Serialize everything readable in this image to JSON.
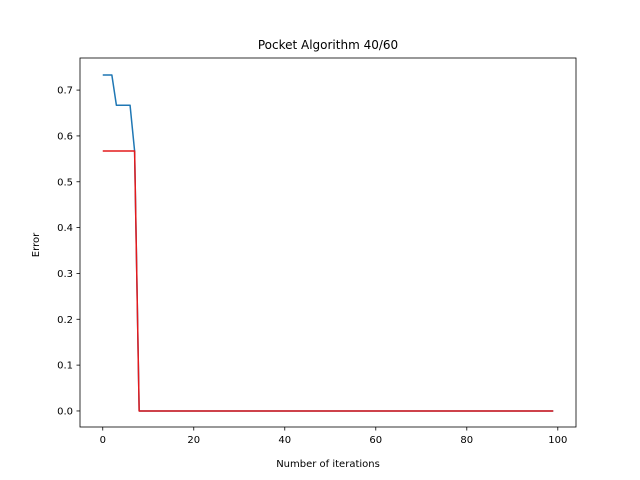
{
  "chart_data": {
    "type": "line",
    "title": "Pocket Algorithm 40/60",
    "xlabel": "Number of iterations",
    "ylabel": "Error",
    "xlim": [
      -5.0,
      104.0
    ],
    "ylim": [
      -0.035,
      0.77
    ],
    "xticks": [
      0,
      20,
      40,
      60,
      80,
      100
    ],
    "yticks": [
      0.0,
      0.1,
      0.2,
      0.3,
      0.4,
      0.5,
      0.6,
      0.7
    ],
    "xtick_labels": [
      "0",
      "20",
      "40",
      "60",
      "80",
      "100"
    ],
    "ytick_labels": [
      "0.0",
      "0.1",
      "0.2",
      "0.3",
      "0.4",
      "0.5",
      "0.6",
      "0.7"
    ],
    "grid": false,
    "legend": false,
    "series": [
      {
        "color": "#1f77b4",
        "x": [
          0,
          1,
          2,
          3,
          4,
          5,
          6,
          7,
          8,
          9,
          99
        ],
        "y": [
          0.733,
          0.733,
          0.733,
          0.667,
          0.667,
          0.667,
          0.667,
          0.567,
          0.0,
          0.0,
          0.0
        ]
      },
      {
        "color": "#e41a1c",
        "x": [
          0,
          1,
          2,
          3,
          4,
          5,
          6,
          7,
          8,
          9,
          99
        ],
        "y": [
          0.567,
          0.567,
          0.567,
          0.567,
          0.567,
          0.567,
          0.567,
          0.567,
          0.0,
          0.0,
          0.0
        ]
      }
    ]
  }
}
